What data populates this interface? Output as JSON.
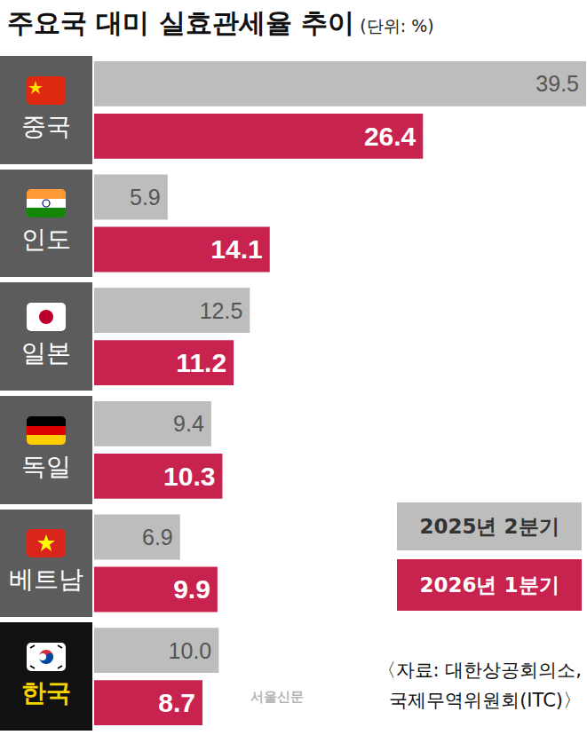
{
  "chart_data": {
    "type": "bar",
    "title": "주요국 대미 실효관세율 추이",
    "subtitle": "(단위: %)",
    "orientation": "horizontal",
    "categories": [
      "중국",
      "인도",
      "일본",
      "독일",
      "베트남",
      "한국"
    ],
    "series": [
      {
        "name": "2025년 2분기",
        "color": "#bdbdbd",
        "values": [
          39.5,
          5.9,
          12.5,
          9.4,
          6.9,
          10.0
        ],
        "value_labels": [
          "39.5",
          "5.9",
          "12.5",
          "9.4",
          "6.9",
          "10.0"
        ]
      },
      {
        "name": "2026년 1분기",
        "color": "#c8224e",
        "values": [
          26.4,
          14.1,
          11.2,
          10.3,
          9.9,
          8.7
        ]
      }
    ],
    "xlim": [
      0,
      39.5
    ],
    "grid": false,
    "data_labels": true,
    "legend": "lower right",
    "source": "〈자료: 대한상공회의소, 국제무역위원회(ITC)〉",
    "credit": "서울신문"
  }
}
